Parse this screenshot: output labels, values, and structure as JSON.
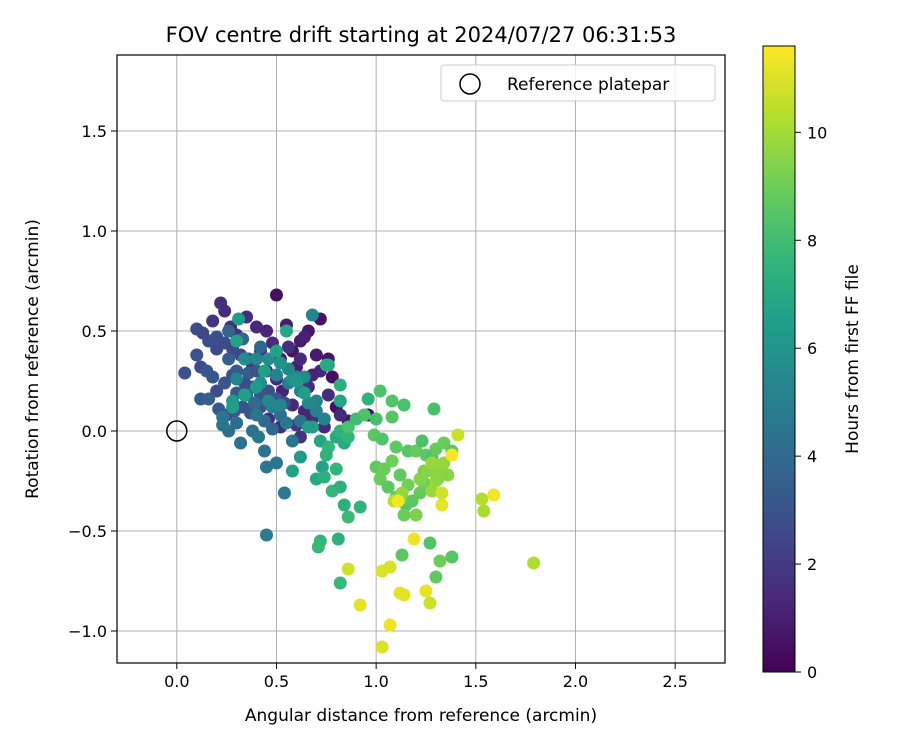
{
  "chart_data": {
    "type": "scatter",
    "title": "FOV centre drift starting at 2024/07/27 06:31:53",
    "xlabel": "Angular distance from reference (arcmin)",
    "ylabel": "Rotation from reference (arcmin)",
    "xlim": [
      -0.3,
      2.75
    ],
    "ylim": [
      -1.16,
      1.88
    ],
    "xticks": [
      0.0,
      0.5,
      1.0,
      1.5,
      2.0,
      2.5
    ],
    "xtick_labels": [
      "0.0",
      "0.5",
      "1.0",
      "1.5",
      "2.0",
      "2.5"
    ],
    "yticks": [
      -1.0,
      -0.5,
      0.0,
      0.5,
      1.0,
      1.5
    ],
    "ytick_labels": [
      "−1.0",
      "−0.5",
      "0.0",
      "0.5",
      "1.0",
      "1.5"
    ],
    "grid": true,
    "legend": {
      "position": "top-right",
      "entries": [
        "Reference platepar"
      ]
    },
    "reference_point": {
      "x": 0.0,
      "y": 0.0,
      "label": "Reference platepar"
    },
    "colorbar": {
      "label": "Hours from first FF file",
      "colormap": "viridis",
      "range": [
        0,
        11.6
      ],
      "ticks": [
        0,
        2,
        4,
        6,
        8,
        10
      ],
      "tick_labels": [
        "0",
        "2",
        "4",
        "6",
        "8",
        "10"
      ]
    },
    "points": [
      [
        0.5,
        0.68,
        0.5
      ],
      [
        0.72,
        0.56,
        0.6
      ],
      [
        0.66,
        0.5,
        0.7
      ],
      [
        0.55,
        0.53,
        0.9
      ],
      [
        0.62,
        0.45,
        0.8
      ],
      [
        0.58,
        0.4,
        0.6
      ],
      [
        0.7,
        0.38,
        0.8
      ],
      [
        0.76,
        0.36,
        0.6
      ],
      [
        0.78,
        0.27,
        0.5
      ],
      [
        0.86,
        0.05,
        0.7
      ],
      [
        0.96,
        0.08,
        0.4
      ],
      [
        0.8,
        0.12,
        0.5
      ],
      [
        0.52,
        0.36,
        1.0
      ],
      [
        0.6,
        0.32,
        0.9
      ],
      [
        0.64,
        0.47,
        1.1
      ],
      [
        0.68,
        0.28,
        1.2
      ],
      [
        0.22,
        0.64,
        1.6
      ],
      [
        0.18,
        0.55,
        1.8
      ],
      [
        0.24,
        0.6,
        1.5
      ],
      [
        0.27,
        0.52,
        1.4
      ],
      [
        0.3,
        0.48,
        1.7
      ],
      [
        0.35,
        0.57,
        1.5
      ],
      [
        0.4,
        0.52,
        1.3
      ],
      [
        0.45,
        0.5,
        1.2
      ],
      [
        0.48,
        0.44,
        1.4
      ],
      [
        0.42,
        0.4,
        1.6
      ],
      [
        0.38,
        0.32,
        1.5
      ],
      [
        0.45,
        0.3,
        1.2
      ],
      [
        0.5,
        0.26,
        1.3
      ],
      [
        0.53,
        0.2,
        1.1
      ],
      [
        0.56,
        0.42,
        1.6
      ],
      [
        0.62,
        0.36,
        1.3
      ],
      [
        0.66,
        0.22,
        1.5
      ],
      [
        0.72,
        0.3,
        1.2
      ],
      [
        0.58,
        0.13,
        1.4
      ],
      [
        0.64,
        0.1,
        1.2
      ],
      [
        0.68,
        0.06,
        1.4
      ],
      [
        0.74,
        0.02,
        1.3
      ],
      [
        0.76,
        0.18,
        1.5
      ],
      [
        0.82,
        0.08,
        1.4
      ],
      [
        0.46,
        0.06,
        1.6
      ],
      [
        0.52,
        0.02,
        1.5
      ],
      [
        0.6,
        0.03,
        1.8
      ],
      [
        0.62,
        -0.03,
        1.7
      ],
      [
        0.1,
        0.51,
        2.6
      ],
      [
        0.13,
        0.49,
        2.5
      ],
      [
        0.16,
        0.45,
        2.8
      ],
      [
        0.2,
        0.41,
        2.7
      ],
      [
        0.2,
        0.47,
        2.9
      ],
      [
        0.24,
        0.44,
        2.6
      ],
      [
        0.28,
        0.41,
        2.7
      ],
      [
        0.32,
        0.38,
        2.5
      ],
      [
        0.36,
        0.36,
        2.8
      ],
      [
        0.1,
        0.38,
        2.9
      ],
      [
        0.12,
        0.32,
        2.7
      ],
      [
        0.04,
        0.29,
        3.0
      ],
      [
        0.15,
        0.3,
        3.2
      ],
      [
        0.18,
        0.27,
        3.1
      ],
      [
        0.2,
        0.2,
        2.8
      ],
      [
        0.24,
        0.24,
        3.0
      ],
      [
        0.28,
        0.28,
        2.9
      ],
      [
        0.3,
        0.19,
        3.2
      ],
      [
        0.34,
        0.24,
        2.6
      ],
      [
        0.38,
        0.22,
        2.8
      ],
      [
        0.42,
        0.18,
        3.0
      ],
      [
        0.46,
        0.2,
        2.9
      ],
      [
        0.5,
        0.16,
        3.1
      ],
      [
        0.54,
        0.14,
        2.7
      ],
      [
        0.12,
        0.16,
        3.3
      ],
      [
        0.16,
        0.16,
        3.4
      ],
      [
        0.21,
        0.11,
        3.2
      ],
      [
        0.25,
        0.08,
        3.1
      ],
      [
        0.29,
        0.1,
        3.3
      ],
      [
        0.33,
        0.12,
        3.0
      ],
      [
        0.37,
        0.09,
        3.2
      ],
      [
        0.42,
        0.12,
        3.1
      ],
      [
        0.36,
        0.29,
        3.3
      ],
      [
        0.4,
        0.3,
        3.0
      ],
      [
        0.26,
        0.36,
        3.4
      ],
      [
        0.3,
        0.3,
        3.3
      ],
      [
        0.26,
        0.5,
        3.7
      ],
      [
        0.33,
        0.46,
        3.8
      ],
      [
        0.42,
        0.42,
        3.9
      ],
      [
        0.35,
        0.18,
        3.9
      ],
      [
        0.39,
        0.14,
        4.0
      ],
      [
        0.44,
        0.05,
        4.0
      ],
      [
        0.48,
        0.01,
        3.8
      ],
      [
        0.3,
        0.04,
        4.1
      ],
      [
        0.26,
        0.0,
        4.2
      ],
      [
        0.32,
        -0.06,
        4.3
      ],
      [
        0.23,
        0.03,
        4.4
      ],
      [
        0.23,
        0.07,
        4.5
      ],
      [
        0.44,
        -0.1,
        4.4
      ],
      [
        0.45,
        -0.18,
        4.6
      ],
      [
        0.5,
        -0.16,
        4.5
      ],
      [
        0.38,
        0.0,
        4.3
      ],
      [
        0.41,
        -0.03,
        4.6
      ],
      [
        0.52,
        0.08,
        4.2
      ],
      [
        0.55,
        0.04,
        4.6
      ],
      [
        0.58,
        -0.05,
        4.4
      ],
      [
        0.62,
        0.05,
        4.3
      ],
      [
        0.54,
        -0.31,
        4.7
      ],
      [
        0.45,
        -0.52,
        4.8
      ],
      [
        0.4,
        0.08,
        4.4
      ],
      [
        0.68,
        0.58,
        5.3
      ],
      [
        0.7,
        0.1,
        5.0
      ],
      [
        0.74,
        0.06,
        5.1
      ],
      [
        0.7,
        0.15,
        5.2
      ],
      [
        0.56,
        0.24,
        5.0
      ],
      [
        0.62,
        0.2,
        5.2
      ],
      [
        0.66,
        0.14,
        5.4
      ],
      [
        0.5,
        0.28,
        5.1
      ],
      [
        0.56,
        0.31,
        5.3
      ],
      [
        0.6,
        0.27,
        5.4
      ],
      [
        0.64,
        0.27,
        5.5
      ],
      [
        0.48,
        0.12,
        5.1
      ],
      [
        0.52,
        0.13,
        5.3
      ],
      [
        0.46,
        0.15,
        5.5
      ],
      [
        0.42,
        0.24,
        5.6
      ],
      [
        0.4,
        0.36,
        5.4
      ],
      [
        0.3,
        0.26,
        5.2
      ],
      [
        0.34,
        0.36,
        5.6
      ],
      [
        0.46,
        0.36,
        5.7
      ],
      [
        0.52,
        0.34,
        5.9
      ],
      [
        0.58,
        0.26,
        5.8
      ],
      [
        0.31,
        0.56,
        6.3
      ],
      [
        0.3,
        0.45,
        6.6
      ],
      [
        0.28,
        0.15,
        6.2
      ],
      [
        0.28,
        0.12,
        6.4
      ],
      [
        0.34,
        0.18,
        6.5
      ],
      [
        0.4,
        0.22,
        6.2
      ],
      [
        0.44,
        0.3,
        6.5
      ],
      [
        0.5,
        0.4,
        6.7
      ],
      [
        0.55,
        0.5,
        6.9
      ],
      [
        0.6,
        0.25,
        6.1
      ],
      [
        0.64,
        0.19,
        6.4
      ],
      [
        0.68,
        0.02,
        6.6
      ],
      [
        0.72,
        -0.05,
        6.8
      ],
      [
        0.76,
        -0.08,
        6.6
      ],
      [
        0.62,
        -0.13,
        6.3
      ],
      [
        0.58,
        -0.2,
        6.6
      ],
      [
        0.7,
        -0.24,
        6.9
      ],
      [
        0.73,
        -0.18,
        6.7
      ],
      [
        0.8,
        -0.03,
        6.9
      ],
      [
        0.76,
        0.33,
        6.6
      ],
      [
        0.75,
        0.33,
        7.0
      ],
      [
        0.82,
        0.15,
        6.8
      ],
      [
        0.84,
        -0.06,
        7.0
      ],
      [
        0.66,
        0.02,
        6.4
      ],
      [
        0.74,
        -0.23,
        7.3
      ],
      [
        0.75,
        -0.12,
        7.5
      ],
      [
        0.8,
        -0.19,
        7.6
      ],
      [
        0.78,
        -0.3,
        7.7
      ],
      [
        0.82,
        -0.28,
        7.4
      ],
      [
        0.72,
        -0.55,
        7.6
      ],
      [
        0.71,
        -0.58,
        7.8
      ],
      [
        0.81,
        -0.54,
        7.4
      ],
      [
        0.86,
        -0.43,
        7.9
      ],
      [
        0.92,
        -0.38,
        7.5
      ],
      [
        0.82,
        -0.76,
        7.8
      ],
      [
        0.82,
        0.23,
        7.3
      ],
      [
        0.82,
        0.0,
        7.4
      ],
      [
        0.86,
        -0.03,
        7.6
      ],
      [
        0.76,
        -0.08,
        7.6
      ],
      [
        0.84,
        -0.37,
        7.3
      ],
      [
        0.96,
        0.16,
        7.5
      ],
      [
        0.86,
        0.02,
        8.2
      ],
      [
        0.9,
        0.06,
        8.0
      ],
      [
        0.94,
        0.08,
        8.3
      ],
      [
        1.0,
        0.06,
        8.1
      ],
      [
        1.02,
        0.2,
        8.3
      ],
      [
        1.08,
        0.15,
        8.4
      ],
      [
        1.14,
        0.13,
        8.2
      ],
      [
        1.08,
        0.07,
        8.5
      ],
      [
        0.99,
        -0.02,
        8.6
      ],
      [
        1.03,
        -0.04,
        8.4
      ],
      [
        1.1,
        -0.08,
        8.7
      ],
      [
        1.16,
        -0.1,
        8.5
      ],
      [
        1.2,
        -0.1,
        8.8
      ],
      [
        1.25,
        -0.12,
        8.6
      ],
      [
        1.28,
        -0.13,
        8.4
      ],
      [
        1.3,
        -0.09,
        8.8
      ],
      [
        1.34,
        -0.06,
        8.9
      ],
      [
        1.23,
        -0.05,
        8.3
      ],
      [
        1.29,
        0.11,
        8.2
      ],
      [
        1.0,
        -0.18,
        8.7
      ],
      [
        1.02,
        -0.24,
        8.9
      ],
      [
        1.06,
        -0.28,
        8.6
      ],
      [
        1.1,
        -0.33,
        8.8
      ],
      [
        1.15,
        -0.37,
        8.5
      ],
      [
        1.14,
        -0.42,
        8.9
      ],
      [
        1.18,
        -0.35,
        8.6
      ],
      [
        1.22,
        -0.31,
        8.8
      ],
      [
        1.24,
        -0.26,
        9.0
      ],
      [
        1.16,
        -0.27,
        9.1
      ],
      [
        1.12,
        -0.22,
        8.7
      ],
      [
        1.08,
        -0.15,
        9.0
      ],
      [
        1.04,
        -0.19,
        8.9
      ],
      [
        1.13,
        -0.62,
        8.6
      ],
      [
        1.27,
        -0.56,
        8.4
      ],
      [
        1.3,
        -0.73,
        8.7
      ],
      [
        1.32,
        -0.65,
        8.9
      ],
      [
        1.38,
        -0.63,
        8.5
      ],
      [
        1.38,
        -0.1,
        8.7
      ],
      [
        1.24,
        -0.2,
        9.3
      ],
      [
        1.26,
        -0.2,
        9.5
      ],
      [
        1.3,
        -0.18,
        9.4
      ],
      [
        1.32,
        -0.2,
        9.6
      ],
      [
        1.34,
        -0.16,
        9.7
      ],
      [
        1.22,
        -0.24,
        9.4
      ],
      [
        1.28,
        -0.3,
        9.8
      ],
      [
        1.12,
        -0.34,
        9.5
      ],
      [
        1.13,
        -0.31,
        9.7
      ],
      [
        1.2,
        -0.42,
        9.3
      ],
      [
        1.3,
        -0.25,
        9.9
      ],
      [
        1.36,
        -0.22,
        9.5
      ],
      [
        1.31,
        -0.24,
        9.6
      ],
      [
        1.28,
        -0.16,
        9.8
      ],
      [
        1.53,
        -0.34,
        10.3
      ],
      [
        1.54,
        -0.4,
        10.1
      ],
      [
        1.79,
        -0.66,
        10.2
      ],
      [
        1.09,
        -0.35,
        10.4
      ],
      [
        0.86,
        -0.69,
        10.8
      ],
      [
        0.92,
        -0.87,
        11.1
      ],
      [
        1.03,
        -0.7,
        11.0
      ],
      [
        1.07,
        -0.68,
        10.9
      ],
      [
        1.12,
        -0.81,
        11.2
      ],
      [
        1.14,
        -0.82,
        11.1
      ],
      [
        1.19,
        -0.54,
        11.3
      ],
      [
        1.25,
        -0.8,
        11.2
      ],
      [
        1.03,
        -1.08,
        11.0
      ],
      [
        1.07,
        -0.97,
        11.3
      ],
      [
        1.27,
        -0.86,
        10.7
      ],
      [
        1.11,
        -0.35,
        11.4
      ],
      [
        1.33,
        -0.37,
        11.2
      ],
      [
        1.33,
        -0.31,
        10.8
      ],
      [
        1.38,
        -0.12,
        11.5
      ],
      [
        1.41,
        -0.02,
        10.7
      ],
      [
        1.59,
        -0.32,
        11.4
      ]
    ]
  }
}
